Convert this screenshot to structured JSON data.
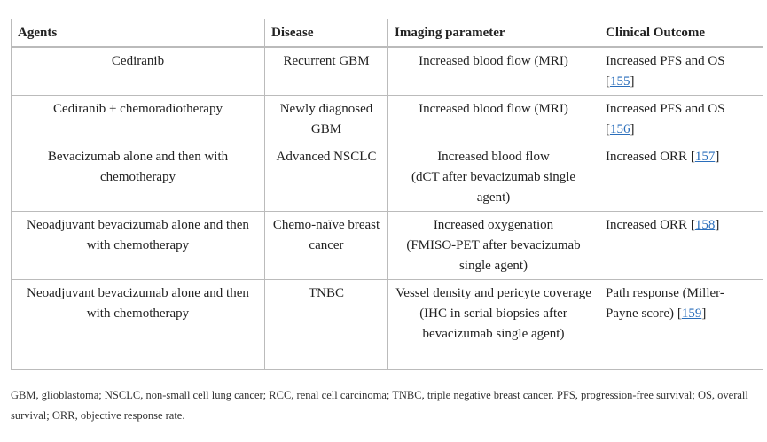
{
  "headers": [
    "Agents",
    "Disease",
    "Imaging parameter",
    "Clinical Outcome"
  ],
  "rows": [
    {
      "agents": "Cediranib",
      "disease": "Recurrent GBM",
      "imaging": "Increased blood flow (MRI)",
      "imaging_detail": "",
      "outcome": "Increased PFS and OS",
      "ref": "155"
    },
    {
      "agents": "Cediranib + chemoradiotherapy",
      "disease": "Newly diagnosed GBM",
      "imaging": "Increased blood flow (MRI)",
      "imaging_detail": "",
      "outcome": "Increased PFS and OS",
      "ref": "156"
    },
    {
      "agents": "Bevacizumab alone and then with chemotherapy",
      "disease": "Advanced NSCLC",
      "imaging": "Increased blood flow",
      "imaging_detail": "(dCT after bevacizumab single agent)",
      "outcome": "Increased ORR",
      "ref": "157"
    },
    {
      "agents": "Neoadjuvant bevacizumab alone and then with chemotherapy",
      "disease": "Chemo-naïve breast cancer",
      "imaging": "Increased oxygenation",
      "imaging_detail": "(FMISO-PET after bevacizumab single agent)",
      "outcome": "Increased ORR",
      "ref": "158"
    },
    {
      "agents": "Neoadjuvant bevacizumab alone and then with chemotherapy",
      "disease": "TNBC",
      "imaging": "Vessel density and pericyte coverage",
      "imaging_detail": "(IHC in serial biopsies after bevacizumab single agent)",
      "outcome": "Path response (Miller-Payne score)",
      "ref": "159"
    }
  ],
  "footnote": "GBM, glioblastoma; NSCLC, non-small cell lung cancer; RCC, renal cell carcinoma; TNBC, triple negative breast cancer. PFS, progression-free survival; OS, overall survival; ORR, objective response rate.",
  "colors": {
    "link": "#2a6ebb",
    "border": "#555555"
  }
}
